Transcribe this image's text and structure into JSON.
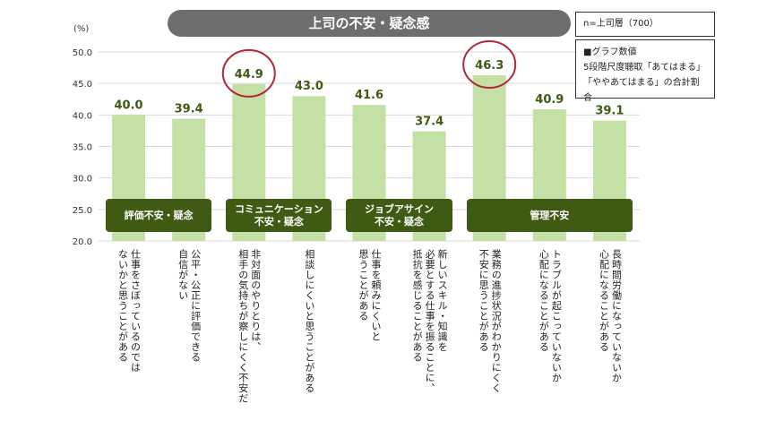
{
  "header": {
    "title": "上司の不安・疑念感",
    "sample_note": "n=上司層（700）",
    "value_note_lines": [
      "■グラフ数値",
      "5段階尺度聴取「あてはまる」",
      "「ややあてはまる」の合計割合"
    ]
  },
  "colors": {
    "bar": "#c5e0a5",
    "banner": "#6e6e6e",
    "group_box": "#3f5a12",
    "highlight_circle": "#b0283a",
    "value_text": "#3f5a12"
  },
  "chart_data": {
    "type": "bar",
    "ylabel": "(%)",
    "ylim": [
      20,
      50
    ],
    "yticks": [
      "20.0",
      "25.0",
      "30.0",
      "35.0",
      "40.0",
      "45.0",
      "50.0"
    ],
    "grid": true,
    "categories": [
      "仕事をさぼっているのでは\nないかと思うことがある",
      "公平・公正に評価できる\n自信がない",
      "非対面のやりとりは、\n相手の気持ちが察しにくく不安だ",
      "相談しにくいと思うことがある",
      "仕事を頼みにくいと\n思うことがある",
      "新しいスキル・知識を\n必要とする仕事を振ることに、\n抵抗を感じることがある",
      "業務の進捗状況がわかりにくく\n不安に思うことがある",
      "トラブルが起こっていないか\n心配になることがある",
      "長時間労働になっていないか\n心配になることがある"
    ],
    "values": [
      40.0,
      39.4,
      44.9,
      43.0,
      41.6,
      37.4,
      46.3,
      40.9,
      39.1
    ],
    "value_labels": [
      "40.0",
      "39.4",
      "44.9",
      "43.0",
      "41.6",
      "37.4",
      "46.3",
      "40.9",
      "39.1"
    ],
    "highlighted": [
      2,
      6
    ],
    "groups": [
      {
        "label": "評価不安・疑念",
        "start": 0,
        "end": 1
      },
      {
        "label": "コミュニケーション\n不安・疑念",
        "start": 2,
        "end": 3
      },
      {
        "label": "ジョブアサイン\n不安・疑念",
        "start": 4,
        "end": 5
      },
      {
        "label": "管理不安",
        "start": 6,
        "end": 8
      }
    ]
  }
}
